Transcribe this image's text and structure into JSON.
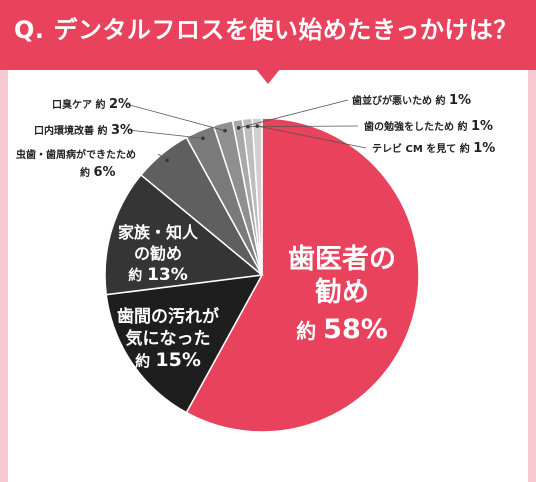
{
  "title": "Q. デンタルフロスを使い始めたきっかけは？",
  "colors": {
    "accent": "#e8425d",
    "background": "#f6c9d2",
    "slices": [
      "#e8425d",
      "#1e1e1e",
      "#353535",
      "#5f5f5f",
      "#7a7a7a",
      "#8f8f8f",
      "#a8a8a8",
      "#bdbdbd",
      "#d0d0d0"
    ]
  },
  "chart_data": {
    "type": "pie",
    "start_angle_deg": 0,
    "direction": "clockwise",
    "slices": [
      {
        "label": "歯医者の勧め",
        "prefix": "約",
        "value": 58,
        "label_lines": [
          "歯医者の",
          "勧め"
        ]
      },
      {
        "label": "歯間の汚れが気になった",
        "prefix": "約",
        "value": 15,
        "label_lines": [
          "歯間の汚れが",
          "気になった"
        ]
      },
      {
        "label": "家族・知人の勧め",
        "prefix": "約",
        "value": 13,
        "label_lines": [
          "家族・知人",
          "の勧め"
        ]
      },
      {
        "label": "虫歯・歯周病ができたため",
        "prefix": "約",
        "value": 6,
        "label_lines": [
          "虫歯・歯周病ができたため"
        ]
      },
      {
        "label": "口内環境改善",
        "prefix": "約",
        "value": 3,
        "label_lines": [
          "口内環境改善"
        ]
      },
      {
        "label": "口臭ケア",
        "prefix": "約",
        "value": 2,
        "label_lines": [
          "口臭ケア"
        ]
      },
      {
        "label": "歯並びが悪いため",
        "prefix": "約",
        "value": 1,
        "label_lines": [
          "歯並びが悪いため"
        ]
      },
      {
        "label": "歯の勉強をしたため",
        "prefix": "約",
        "value": 1,
        "label_lines": [
          "歯の勉強をしたため"
        ]
      },
      {
        "label": "テレビ CM を見て",
        "prefix": "約",
        "value": 1,
        "label_lines": [
          "テレビ CM を見て"
        ]
      }
    ]
  }
}
